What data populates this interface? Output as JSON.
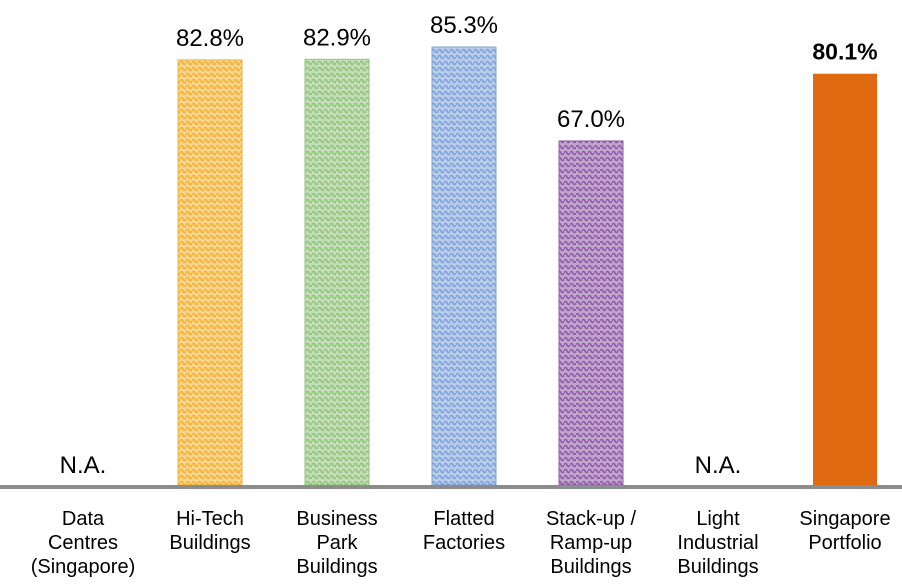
{
  "chart_data": {
    "type": "bar",
    "title": "",
    "xlabel": "",
    "ylabel": "",
    "ylim": [
      0,
      85.3
    ],
    "grid": false,
    "legend": "none",
    "categories": [
      "Data\nCentres\n(Singapore)",
      "Hi-Tech\nBuildings",
      "Business\nPark\nBuildings",
      "Flatted\nFactories",
      "Stack-up /\nRamp-up\nBuildings",
      "Light\nIndustrial\nBuildings",
      "Singapore\nPortfolio"
    ],
    "values": [
      null,
      82.8,
      82.9,
      85.3,
      67.0,
      null,
      80.1
    ],
    "data_labels": [
      "N.A.",
      "82.8%",
      "82.9%",
      "85.3%",
      "67.0%",
      "N.A.",
      "80.1%"
    ],
    "colors": [
      "#000000",
      "#F2B233",
      "#93C47D",
      "#7FA2D8",
      "#8E5BA6",
      "#000000",
      "#E06A12"
    ],
    "emphasized": [
      false,
      false,
      false,
      false,
      false,
      false,
      true
    ]
  }
}
